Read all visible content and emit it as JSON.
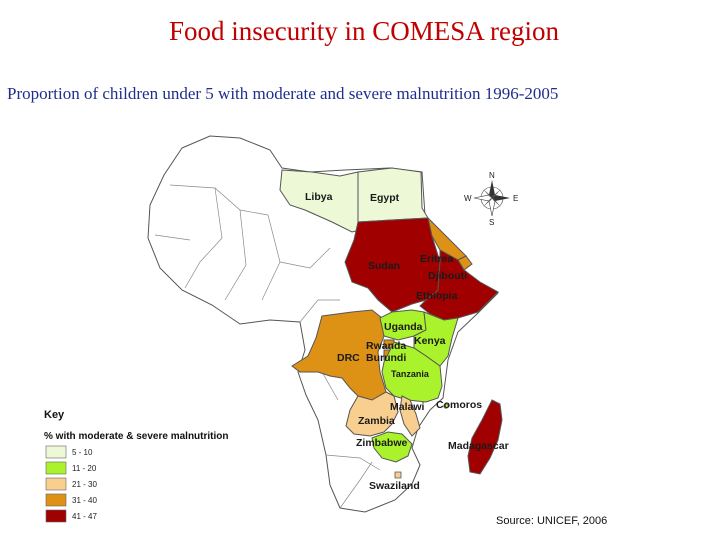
{
  "title": "Food insecurity in COMESA region",
  "subtitle": "Proportion of children under 5 with moderate and severe malnutrition 1996-2005",
  "colors": {
    "band_5_10": "#ecf8d6",
    "band_11_20": "#aaf22b",
    "band_21_30": "#f8cf8f",
    "band_31_40": "#dd9216",
    "band_41_47": "#a10000",
    "non_member": "#ffffff",
    "border": "#555555"
  },
  "countries": {
    "libya": {
      "label": "Libya",
      "band": "5 - 10"
    },
    "egypt": {
      "label": "Egypt",
      "band": "5 - 10"
    },
    "sudan": {
      "label": "Sudan",
      "band": "41 - 47"
    },
    "eritrea": {
      "label": "Eritrea",
      "band": "31 - 40"
    },
    "djibouti": {
      "label": "Djibouti",
      "band": "31 - 40"
    },
    "ethiopia": {
      "label": "Ethiopia",
      "band": "41 - 47"
    },
    "uganda": {
      "label": "Uganda",
      "band": "11 - 20"
    },
    "kenya": {
      "label": "Kenya",
      "band": "11 - 20"
    },
    "rwanda": {
      "label": "Rwanda",
      "band": "31 - 40"
    },
    "burundi": {
      "label": "Burundi",
      "band": "31 - 40"
    },
    "drc": {
      "label": "DRC",
      "band": "31 - 40"
    },
    "tanzania": {
      "label": "Tanzania",
      "band": "11 - 20"
    },
    "malawi": {
      "label": "Malawi",
      "band": "21 - 30"
    },
    "zambia": {
      "label": "Zambia",
      "band": "21 - 30"
    },
    "comoros": {
      "label": "Comoros",
      "band": "11 - 20"
    },
    "zimbabwe": {
      "label": "Zimbabwe",
      "band": "11 - 20"
    },
    "madagascar": {
      "label": "Madagascar",
      "band": "41 - 47"
    },
    "swaziland": {
      "label": "Swaziland",
      "band": "21 - 30"
    }
  },
  "key": {
    "title": "Key",
    "subtitle": "% with moderate & severe malnutrition",
    "items": [
      {
        "label": "5 - 10",
        "color": "#ecf8d6"
      },
      {
        "label": "11 - 20",
        "color": "#aaf22b"
      },
      {
        "label": "21 - 30",
        "color": "#f8cf8f"
      },
      {
        "label": "31 - 40",
        "color": "#dd9216"
      },
      {
        "label": "41 - 47",
        "color": "#a10000"
      }
    ]
  },
  "compass": {
    "n": "N",
    "s": "S",
    "e": "E",
    "w": "W",
    "icon": "compass-rose-icon"
  },
  "source": "Source:  UNICEF, 2006"
}
